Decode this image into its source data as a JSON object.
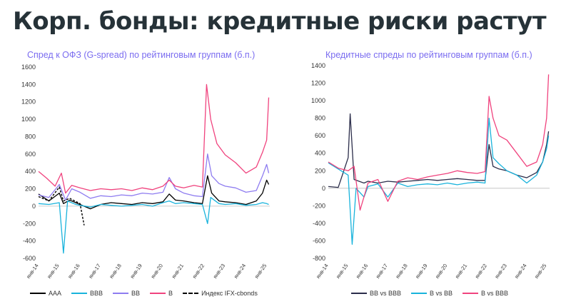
{
  "page": {
    "title": "Корп. бонды: кредитные риски растут"
  },
  "colors": {
    "AAA": "#2b2d4a",
    "BBB": "#19b3dc",
    "BB": "#8e7cf0",
    "B": "#f0437e",
    "IFX": "#202020",
    "BB vs BBB": "#2b2d4a",
    "B vs BB": "#19b3dc",
    "B vs BBB": "#f0437e"
  },
  "chart_data": [
    {
      "type": "line",
      "title": "Спред к ОФЗ (G-spread) по рейтинговым группам (б.п.)",
      "x_ticks": [
        "янв-14",
        "янв-15",
        "янв-16",
        "янв-17",
        "янв-18",
        "янв-19",
        "янв-20",
        "янв-21",
        "янв-22",
        "янв-23",
        "янв-24",
        "янв-25"
      ],
      "ylim": [
        -600,
        1600
      ],
      "y_ticks": [
        -600,
        -400,
        -200,
        0,
        200,
        400,
        600,
        800,
        1000,
        1200,
        1400,
        1600
      ],
      "grid": false,
      "legend": "bottom",
      "series": [
        {
          "name": "ААА",
          "points": [
            [
              2014.0,
              140
            ],
            [
              2014.5,
              60
            ],
            [
              2015.0,
              150
            ],
            [
              2015.2,
              30
            ],
            [
              2015.5,
              70
            ],
            [
              2016.0,
              20
            ],
            [
              2016.5,
              -30
            ],
            [
              2017.0,
              20
            ],
            [
              2017.5,
              40
            ],
            [
              2018.0,
              30
            ],
            [
              2018.5,
              20
            ],
            [
              2019.0,
              40
            ],
            [
              2019.5,
              30
            ],
            [
              2020.0,
              50
            ],
            [
              2020.3,
              140
            ],
            [
              2020.6,
              70
            ],
            [
              2021.0,
              60
            ],
            [
              2021.5,
              40
            ],
            [
              2021.9,
              30
            ],
            [
              2022.15,
              350
            ],
            [
              2022.35,
              150
            ],
            [
              2022.7,
              60
            ],
            [
              2023.0,
              50
            ],
            [
              2023.5,
              40
            ],
            [
              2024.0,
              20
            ],
            [
              2024.5,
              60
            ],
            [
              2024.8,
              150
            ],
            [
              2025.0,
              300
            ],
            [
              2025.1,
              250
            ]
          ]
        },
        {
          "name": "BBB",
          "points": [
            [
              2014.0,
              30
            ],
            [
              2014.5,
              20
            ],
            [
              2015.0,
              40
            ],
            [
              2015.2,
              -540
            ],
            [
              2015.4,
              60
            ],
            [
              2015.8,
              20
            ],
            [
              2016.0,
              10
            ],
            [
              2016.5,
              -10
            ],
            [
              2017.0,
              20
            ],
            [
              2017.5,
              10
            ],
            [
              2018.0,
              0
            ],
            [
              2018.5,
              10
            ],
            [
              2019.0,
              20
            ],
            [
              2019.5,
              0
            ],
            [
              2020.0,
              40
            ],
            [
              2020.3,
              60
            ],
            [
              2020.6,
              30
            ],
            [
              2021.0,
              40
            ],
            [
              2021.5,
              30
            ],
            [
              2021.9,
              20
            ],
            [
              2022.15,
              -200
            ],
            [
              2022.3,
              100
            ],
            [
              2022.7,
              30
            ],
            [
              2023.0,
              20
            ],
            [
              2023.5,
              30
            ],
            [
              2024.0,
              10
            ],
            [
              2024.5,
              20
            ],
            [
              2024.8,
              40
            ],
            [
              2025.0,
              30
            ],
            [
              2025.1,
              20
            ]
          ]
        },
        {
          "name": "BB",
          "points": [
            [
              2014.0,
              130
            ],
            [
              2014.5,
              100
            ],
            [
              2015.0,
              250
            ],
            [
              2015.3,
              70
            ],
            [
              2015.6,
              200
            ],
            [
              2016.0,
              160
            ],
            [
              2016.5,
              90
            ],
            [
              2017.0,
              120
            ],
            [
              2017.5,
              110
            ],
            [
              2018.0,
              130
            ],
            [
              2018.5,
              120
            ],
            [
              2019.0,
              150
            ],
            [
              2019.5,
              140
            ],
            [
              2020.0,
              160
            ],
            [
              2020.3,
              330
            ],
            [
              2020.6,
              200
            ],
            [
              2021.0,
              150
            ],
            [
              2021.5,
              120
            ],
            [
              2021.9,
              110
            ],
            [
              2022.15,
              600
            ],
            [
              2022.35,
              350
            ],
            [
              2022.7,
              260
            ],
            [
              2023.0,
              230
            ],
            [
              2023.5,
              210
            ],
            [
              2024.0,
              160
            ],
            [
              2024.5,
              180
            ],
            [
              2024.8,
              350
            ],
            [
              2025.0,
              480
            ],
            [
              2025.1,
              380
            ]
          ]
        },
        {
          "name": "B",
          "points": [
            [
              2014.0,
              400
            ],
            [
              2014.4,
              320
            ],
            [
              2014.8,
              230
            ],
            [
              2015.1,
              380
            ],
            [
              2015.3,
              150
            ],
            [
              2015.6,
              240
            ],
            [
              2016.0,
              210
            ],
            [
              2016.5,
              180
            ],
            [
              2017.0,
              200
            ],
            [
              2017.5,
              190
            ],
            [
              2018.0,
              200
            ],
            [
              2018.5,
              180
            ],
            [
              2019.0,
              210
            ],
            [
              2019.5,
              190
            ],
            [
              2020.0,
              230
            ],
            [
              2020.3,
              300
            ],
            [
              2020.6,
              230
            ],
            [
              2021.0,
              210
            ],
            [
              2021.5,
              240
            ],
            [
              2021.9,
              220
            ],
            [
              2022.1,
              1400
            ],
            [
              2022.3,
              1000
            ],
            [
              2022.6,
              720
            ],
            [
              2023.0,
              590
            ],
            [
              2023.5,
              500
            ],
            [
              2024.0,
              380
            ],
            [
              2024.5,
              450
            ],
            [
              2024.8,
              620
            ],
            [
              2025.0,
              760
            ],
            [
              2025.1,
              1250
            ]
          ]
        },
        {
          "name": "Индекс IFX-cbonds",
          "dashed": true,
          "points": [
            [
              2014.0,
              110
            ],
            [
              2014.5,
              60
            ],
            [
              2015.0,
              220
            ],
            [
              2015.2,
              60
            ],
            [
              2015.5,
              90
            ],
            [
              2016.0,
              30
            ],
            [
              2016.2,
              -220
            ]
          ]
        }
      ]
    },
    {
      "type": "line",
      "title": "Кредитные спреды по рейтинговым группам (б.п.)",
      "x_ticks": [
        "янв-14",
        "янв-15",
        "янв-16",
        "янв-17",
        "янв-18",
        "янв-19",
        "янв-20",
        "янв-21",
        "янв-22",
        "янв-23",
        "янв-24",
        "янв-25"
      ],
      "ylim": [
        -800,
        1400
      ],
      "y_ticks": [
        -800,
        -600,
        -400,
        -200,
        0,
        200,
        400,
        600,
        800,
        1000,
        1200,
        1400
      ],
      "grid": false,
      "legend": "bottom",
      "series": [
        {
          "name": "BB vs BBB",
          "points": [
            [
              2014.0,
              20
            ],
            [
              2014.5,
              10
            ],
            [
              2015.0,
              350
            ],
            [
              2015.1,
              850
            ],
            [
              2015.3,
              100
            ],
            [
              2015.8,
              60
            ],
            [
              2016.0,
              80
            ],
            [
              2016.5,
              60
            ],
            [
              2017.0,
              80
            ],
            [
              2017.5,
              70
            ],
            [
              2018.0,
              80
            ],
            [
              2018.5,
              90
            ],
            [
              2019.0,
              100
            ],
            [
              2019.5,
              90
            ],
            [
              2020.0,
              100
            ],
            [
              2020.5,
              110
            ],
            [
              2021.0,
              100
            ],
            [
              2021.5,
              90
            ],
            [
              2021.9,
              90
            ],
            [
              2022.1,
              500
            ],
            [
              2022.3,
              250
            ],
            [
              2022.6,
              220
            ],
            [
              2023.0,
              200
            ],
            [
              2023.5,
              150
            ],
            [
              2024.0,
              120
            ],
            [
              2024.5,
              180
            ],
            [
              2024.8,
              300
            ],
            [
              2025.0,
              500
            ],
            [
              2025.1,
              650
            ]
          ]
        },
        {
          "name": "B vs BB",
          "points": [
            [
              2014.0,
              290
            ],
            [
              2014.5,
              220
            ],
            [
              2015.0,
              150
            ],
            [
              2015.2,
              -640
            ],
            [
              2015.4,
              0
            ],
            [
              2015.8,
              -100
            ],
            [
              2016.0,
              20
            ],
            [
              2016.5,
              50
            ],
            [
              2017.0,
              -100
            ],
            [
              2017.5,
              60
            ],
            [
              2018.0,
              20
            ],
            [
              2018.5,
              40
            ],
            [
              2019.0,
              50
            ],
            [
              2019.5,
              40
            ],
            [
              2020.0,
              60
            ],
            [
              2020.5,
              40
            ],
            [
              2021.0,
              60
            ],
            [
              2021.5,
              70
            ],
            [
              2021.9,
              60
            ],
            [
              2022.1,
              800
            ],
            [
              2022.3,
              350
            ],
            [
              2022.6,
              280
            ],
            [
              2023.0,
              200
            ],
            [
              2023.5,
              150
            ],
            [
              2024.0,
              60
            ],
            [
              2024.5,
              150
            ],
            [
              2024.8,
              300
            ],
            [
              2025.0,
              450
            ],
            [
              2025.1,
              600
            ]
          ]
        },
        {
          "name": "B vs BBB",
          "points": [
            [
              2014.0,
              300
            ],
            [
              2014.5,
              230
            ],
            [
              2015.0,
              200
            ],
            [
              2015.3,
              250
            ],
            [
              2015.6,
              -250
            ],
            [
              2016.0,
              60
            ],
            [
              2016.5,
              100
            ],
            [
              2017.0,
              -150
            ],
            [
              2017.5,
              80
            ],
            [
              2018.0,
              120
            ],
            [
              2018.5,
              100
            ],
            [
              2019.0,
              130
            ],
            [
              2019.5,
              150
            ],
            [
              2020.0,
              170
            ],
            [
              2020.5,
              200
            ],
            [
              2021.0,
              180
            ],
            [
              2021.5,
              170
            ],
            [
              2021.9,
              190
            ],
            [
              2022.1,
              1050
            ],
            [
              2022.3,
              800
            ],
            [
              2022.6,
              600
            ],
            [
              2023.0,
              550
            ],
            [
              2023.5,
              400
            ],
            [
              2024.0,
              250
            ],
            [
              2024.5,
              300
            ],
            [
              2024.8,
              500
            ],
            [
              2025.0,
              800
            ],
            [
              2025.1,
              1300
            ]
          ]
        }
      ]
    }
  ]
}
